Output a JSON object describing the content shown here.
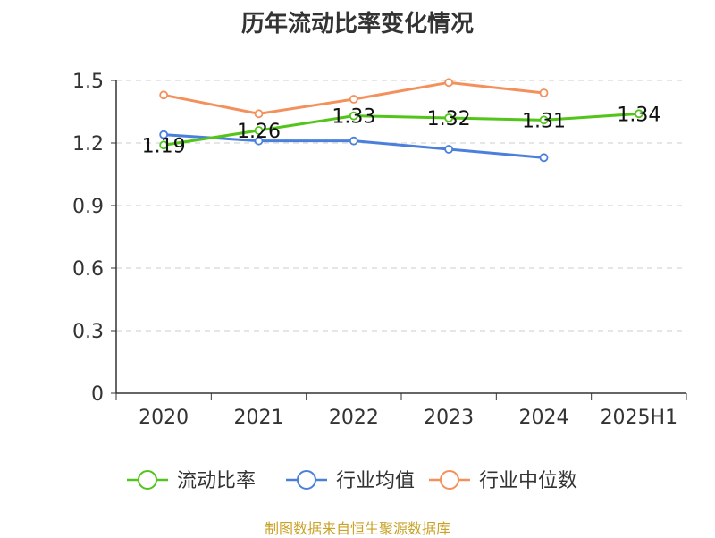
{
  "chart_data": {
    "type": "line",
    "title": "历年流动比率变化情况",
    "xlabel": "",
    "ylabel": "",
    "categories": [
      "2020",
      "2021",
      "2022",
      "2023",
      "2024",
      "2025H1"
    ],
    "ylim": [
      0,
      1.5
    ],
    "yticks": [
      "0",
      "0.3",
      "0.6",
      "0.9",
      "1.2",
      "1.5"
    ],
    "grid": true,
    "legend_position": "bottom",
    "series": [
      {
        "name": "流动比率",
        "color": "#52c41a",
        "values": [
          1.19,
          1.26,
          1.33,
          1.32,
          1.31,
          1.34
        ],
        "data_labels": [
          "1.19",
          "1.26",
          "1.33",
          "1.32",
          "1.31",
          "1.34"
        ]
      },
      {
        "name": "行业均值",
        "color": "#4a7fdc",
        "values": [
          1.24,
          1.21,
          1.21,
          1.17,
          1.13,
          null
        ]
      },
      {
        "name": "行业中位数",
        "color": "#f4905b",
        "values": [
          1.43,
          1.34,
          1.41,
          1.49,
          1.44,
          null
        ]
      }
    ]
  },
  "source_note": "制图数据来自恒生聚源数据库"
}
